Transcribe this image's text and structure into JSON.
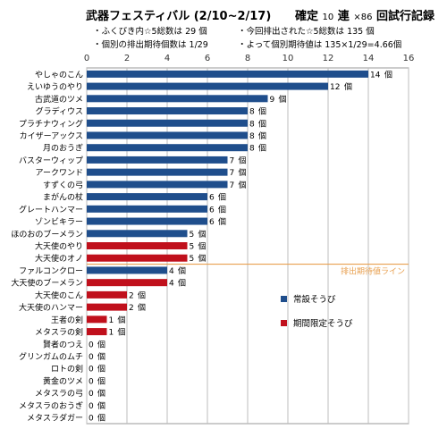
{
  "header": {
    "title": "武器フェスティバル (2/10~2/17)",
    "record_prefix": "確定",
    "record_count": "10",
    "record_mid": "連",
    "record_times": "×86",
    "record_suffix": "回試行記録",
    "notes": [
      "・ふくびき内☆5総数は 29 個",
      "・今回排出された☆5総数は 135 個",
      "・個別の排出期待個数は 1/29",
      "・よって個別期待値は 135×1/29=4.66個"
    ]
  },
  "chart_data": {
    "type": "bar",
    "orientation": "horizontal",
    "categories": [
      "やしゃのこん",
      "えいゆうのやり",
      "古武道のツメ",
      "グラディウス",
      "プラチナウィング",
      "カイザーアックス",
      "月のおうぎ",
      "バスターウィップ",
      "アークワンド",
      "すずくの弓",
      "まがんの杖",
      "グレートハンマー",
      "ゾンビキラー",
      "ほのおのブーメラン",
      "大天使のやり",
      "大天使のオノ",
      "ファルコンクロー",
      "大天使のブーメラン",
      "大天使のこん",
      "大天使のハンマー",
      "王者の剣",
      "メタスラの剣",
      "賢者のつえ",
      "グリンガムのムチ",
      "ロトの剣",
      "黄金のツメ",
      "メタスラの弓",
      "メタスラのおうぎ",
      "メタスラダガー"
    ],
    "values": [
      14,
      12,
      9,
      8,
      8,
      8,
      8,
      7,
      7,
      7,
      6,
      6,
      6,
      5,
      5,
      5,
      4,
      4,
      2,
      2,
      1,
      1,
      0,
      0,
      0,
      0,
      0,
      0,
      0
    ],
    "limited": [
      false,
      false,
      false,
      false,
      false,
      false,
      false,
      false,
      false,
      false,
      false,
      false,
      false,
      false,
      true,
      true,
      false,
      true,
      true,
      true,
      true,
      true,
      true,
      true,
      true,
      true,
      true,
      true,
      true
    ],
    "value_unit": "個",
    "xlim": [
      0,
      16
    ],
    "xticks": [
      0,
      2,
      4,
      6,
      8,
      10,
      12,
      14,
      16
    ],
    "reference_line": {
      "value": 4.66,
      "label": "排出期待値ライン",
      "color": "#E8A050"
    },
    "legend": [
      {
        "name": "常設そうび",
        "color": "#1F4E8C"
      },
      {
        "name": "期間限定そうび",
        "color": "#C0101C"
      }
    ],
    "legend_placement": "right-middle",
    "grid": true
  }
}
